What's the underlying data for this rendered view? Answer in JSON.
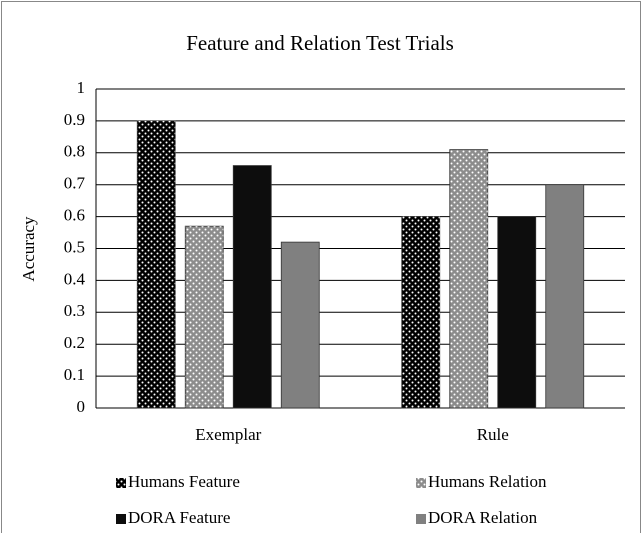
{
  "chart_data": {
    "type": "bar",
    "title": "Feature and Relation Test Trials",
    "y_label": "Accuracy",
    "categories": [
      "Exemplar",
      "Rule"
    ],
    "series": [
      {
        "name": "Humans Feature",
        "color": "#000000",
        "pattern": "dots",
        "values": [
          0.9,
          0.6
        ]
      },
      {
        "name": "Humans Relation",
        "color": "#8c8c8c",
        "pattern": "dots",
        "values": [
          0.57,
          0.81
        ]
      },
      {
        "name": "DORA Feature",
        "color": "#0d0d0d",
        "values": [
          0.76,
          0.6
        ]
      },
      {
        "name": "DORA Relation",
        "color": "#808080",
        "values": [
          0.52,
          0.7
        ]
      }
    ],
    "ylim": [
      0,
      1
    ],
    "yticks": [
      0,
      0.1,
      0.2,
      0.3,
      0.4,
      0.5,
      0.6,
      0.7,
      0.8,
      0.9,
      1
    ],
    "grid": true,
    "legend": "bottom"
  }
}
